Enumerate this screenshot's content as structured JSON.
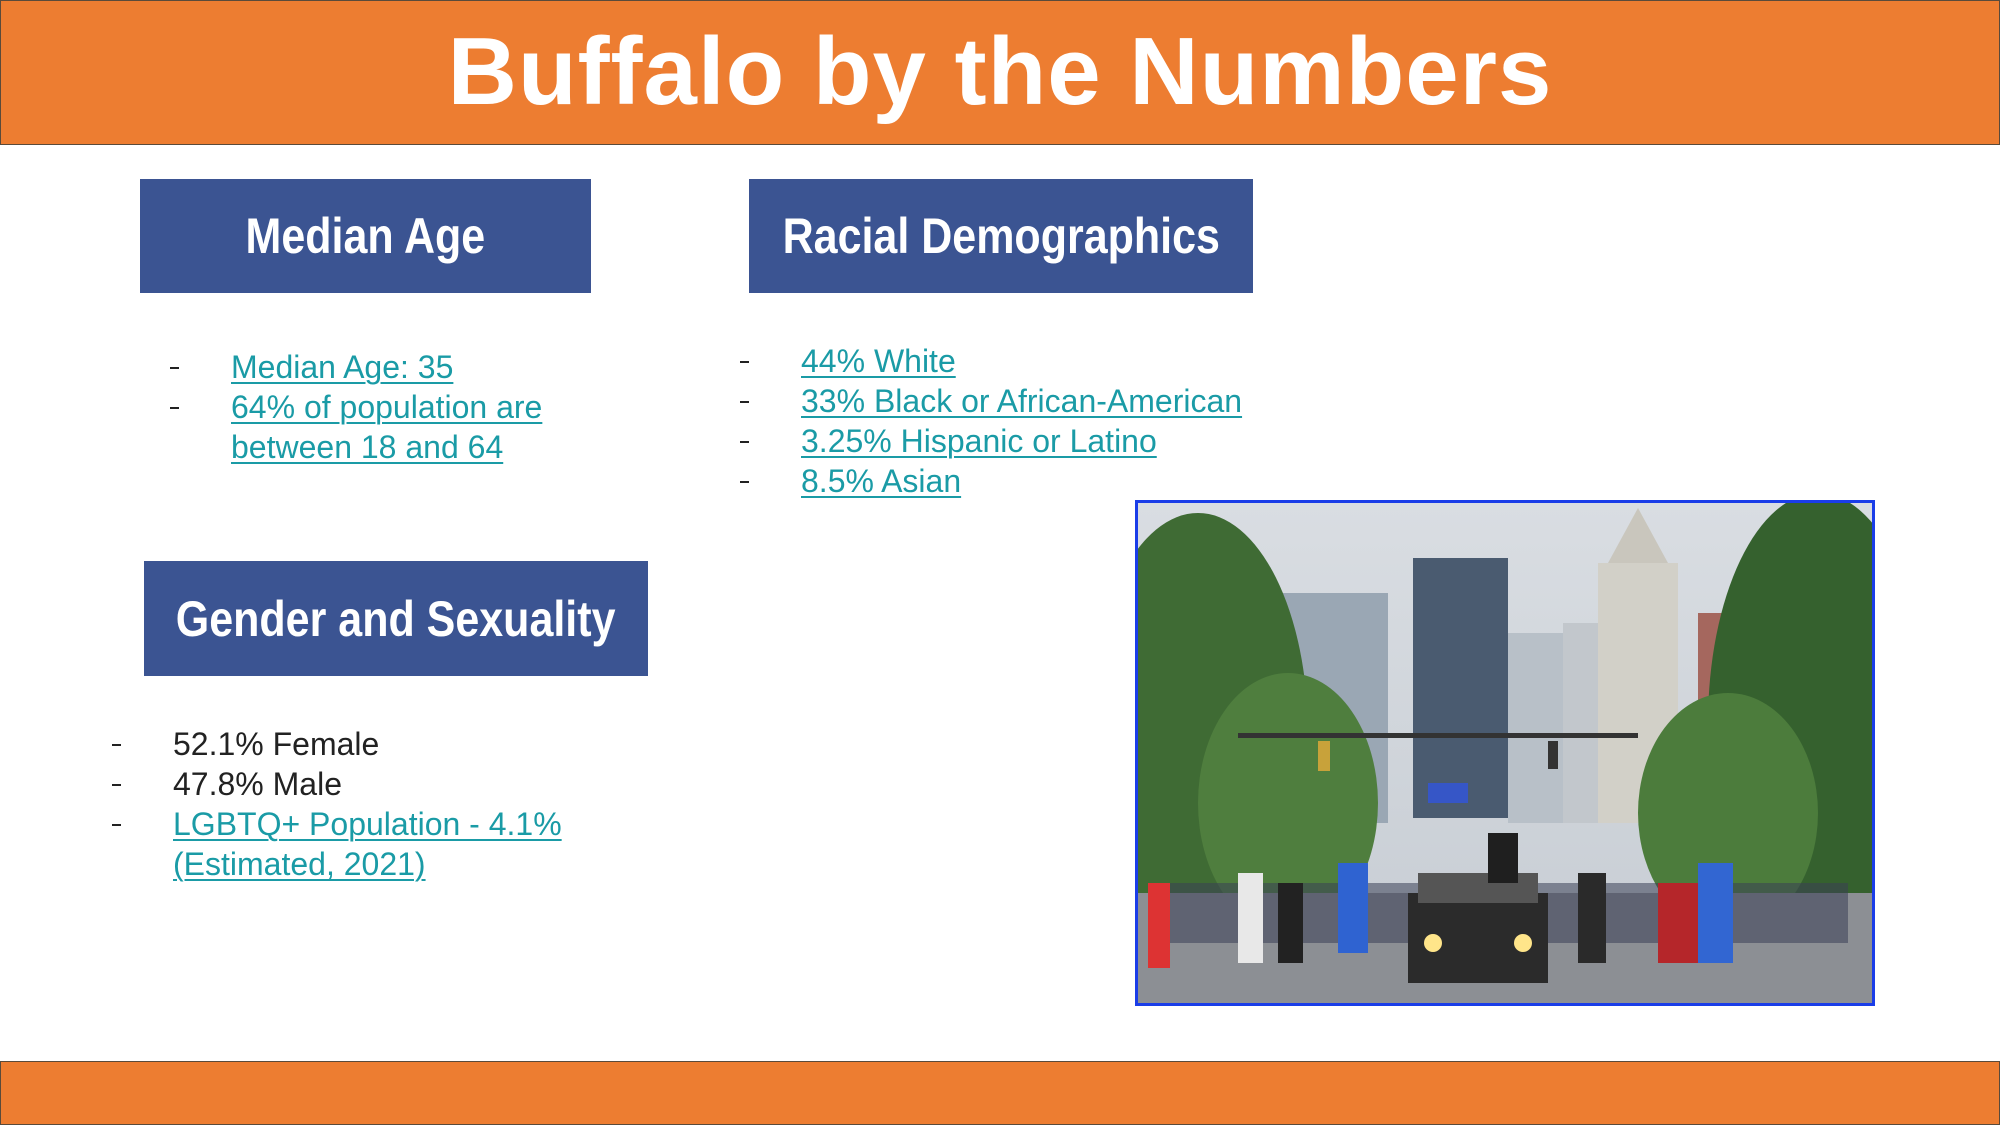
{
  "header": {
    "title": "Buffalo by the Numbers"
  },
  "sections": [
    {
      "heading": "Median Age",
      "items": [
        {
          "text": "Median Age: 35",
          "link": true
        },
        {
          "text": "64% of population are between 18 and 64",
          "link": true
        }
      ]
    },
    {
      "heading": "Racial Demographics",
      "items": [
        {
          "text": "44% White",
          "link": true
        },
        {
          "text": "33% Black or African-American",
          "link": true
        },
        {
          "text": "3.25% Hispanic or Latino",
          "link": true
        },
        {
          "text": "8.5% Asian",
          "link": true
        }
      ]
    },
    {
      "heading": "Gender and Sexuality",
      "items": [
        {
          "text": "52.1% Female",
          "link": false
        },
        {
          "text": "47.8% Male",
          "link": false
        },
        {
          "text": "LGBTQ+ Population - 4.1% (Estimated, 2021)",
          "link": true
        }
      ]
    }
  ]
}
